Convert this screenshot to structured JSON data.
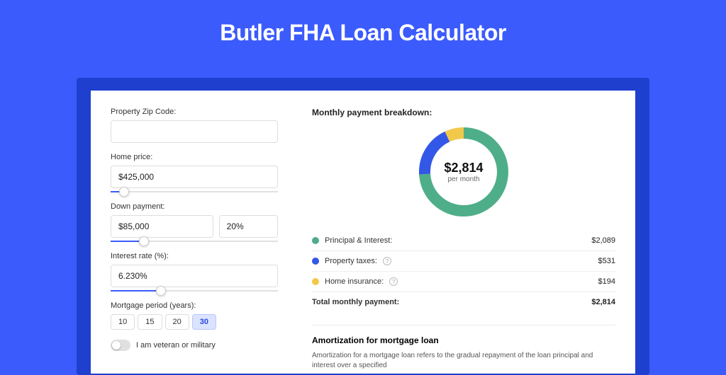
{
  "page": {
    "title": "Butler FHA Loan Calculator",
    "background_color": "#3b5bfd",
    "accent_color": "#3b5bfd"
  },
  "form": {
    "zip": {
      "label": "Property Zip Code:",
      "value": ""
    },
    "home_price": {
      "label": "Home price:",
      "value": "$425,000",
      "slider_pct": 8
    },
    "down_payment": {
      "label": "Down payment:",
      "amount": "$85,000",
      "percent": "20%",
      "slider_pct": 20
    },
    "interest_rate": {
      "label": "Interest rate (%):",
      "value": "6.230%",
      "slider_pct": 30
    },
    "mortgage_period": {
      "label": "Mortgage period (years):",
      "options": [
        "10",
        "15",
        "20",
        "30"
      ],
      "selected": "30"
    },
    "veteran": {
      "label": "I am veteran or military",
      "checked": false
    }
  },
  "breakdown": {
    "title": "Monthly payment breakdown:",
    "center_amount": "$2,814",
    "center_sub": "per month",
    "items": [
      {
        "key": "pi",
        "label": "Principal & Interest:",
        "value": "$2,089",
        "color": "#4fae8a",
        "has_info": false,
        "pct": 74
      },
      {
        "key": "tax",
        "label": "Property taxes:",
        "value": "$531",
        "color": "#3357e6",
        "has_info": true,
        "pct": 19
      },
      {
        "key": "ins",
        "label": "Home insurance:",
        "value": "$194",
        "color": "#f2c84b",
        "has_info": true,
        "pct": 7
      }
    ],
    "total": {
      "label": "Total monthly payment:",
      "value": "$2,814"
    },
    "donut": {
      "stroke_width": 16,
      "radius": 55,
      "background": "#ffffff"
    }
  },
  "amortization": {
    "title": "Amortization for mortgage loan",
    "text": "Amortization for a mortgage loan refers to the gradual repayment of the loan principal and interest over a specified"
  }
}
